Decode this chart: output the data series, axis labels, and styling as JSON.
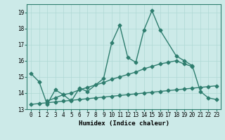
{
  "x": [
    0,
    1,
    2,
    3,
    4,
    5,
    6,
    7,
    8,
    9,
    10,
    11,
    12,
    13,
    14,
    15,
    16,
    17,
    18,
    19,
    20,
    21,
    22,
    23
  ],
  "line1": [
    15.2,
    14.7,
    13.3,
    14.2,
    13.9,
    13.5,
    14.3,
    14.1,
    14.9,
    17.1,
    18.2,
    16.2,
    15.9,
    17.9,
    19.1,
    17.9,
    16.3,
    16.0,
    15.7,
    14.1,
    13.7,
    13.6
  ],
  "line1_x": [
    0,
    1,
    2,
    3,
    4,
    5,
    6,
    7,
    9,
    10,
    11,
    12,
    13,
    14,
    15,
    16,
    18,
    19,
    20,
    21,
    22,
    23
  ],
  "line2": [
    13.3,
    13.35,
    13.4,
    13.45,
    13.5,
    13.55,
    13.6,
    13.65,
    13.7,
    13.75,
    13.8,
    13.85,
    13.9,
    13.95,
    14.0,
    14.05,
    14.1,
    14.15,
    14.2,
    14.25,
    14.3,
    14.35,
    14.4,
    14.45
  ],
  "line3_x": [
    2,
    3,
    4,
    5,
    6,
    7,
    8,
    9,
    10,
    11,
    12,
    13,
    14,
    15,
    16,
    17,
    18,
    19,
    20
  ],
  "line3": [
    13.5,
    13.7,
    13.9,
    14.0,
    14.2,
    14.35,
    14.5,
    14.65,
    14.85,
    15.0,
    15.15,
    15.3,
    15.5,
    15.65,
    15.8,
    15.9,
    16.0,
    15.8,
    15.65
  ],
  "color": "#2e7d6e",
  "bg_color": "#cceae8",
  "grid_color": "#afd8d4",
  "xlabel": "Humidex (Indice chaleur)",
  "ylim": [
    13.0,
    19.5
  ],
  "xlim": [
    -0.5,
    23.5
  ],
  "yticks": [
    13,
    14,
    15,
    16,
    17,
    18,
    19
  ],
  "xticks": [
    0,
    1,
    2,
    3,
    4,
    5,
    6,
    7,
    8,
    9,
    10,
    11,
    12,
    13,
    14,
    15,
    16,
    17,
    18,
    19,
    20,
    21,
    22,
    23
  ],
  "markersize": 2.5,
  "linewidth": 1.0
}
